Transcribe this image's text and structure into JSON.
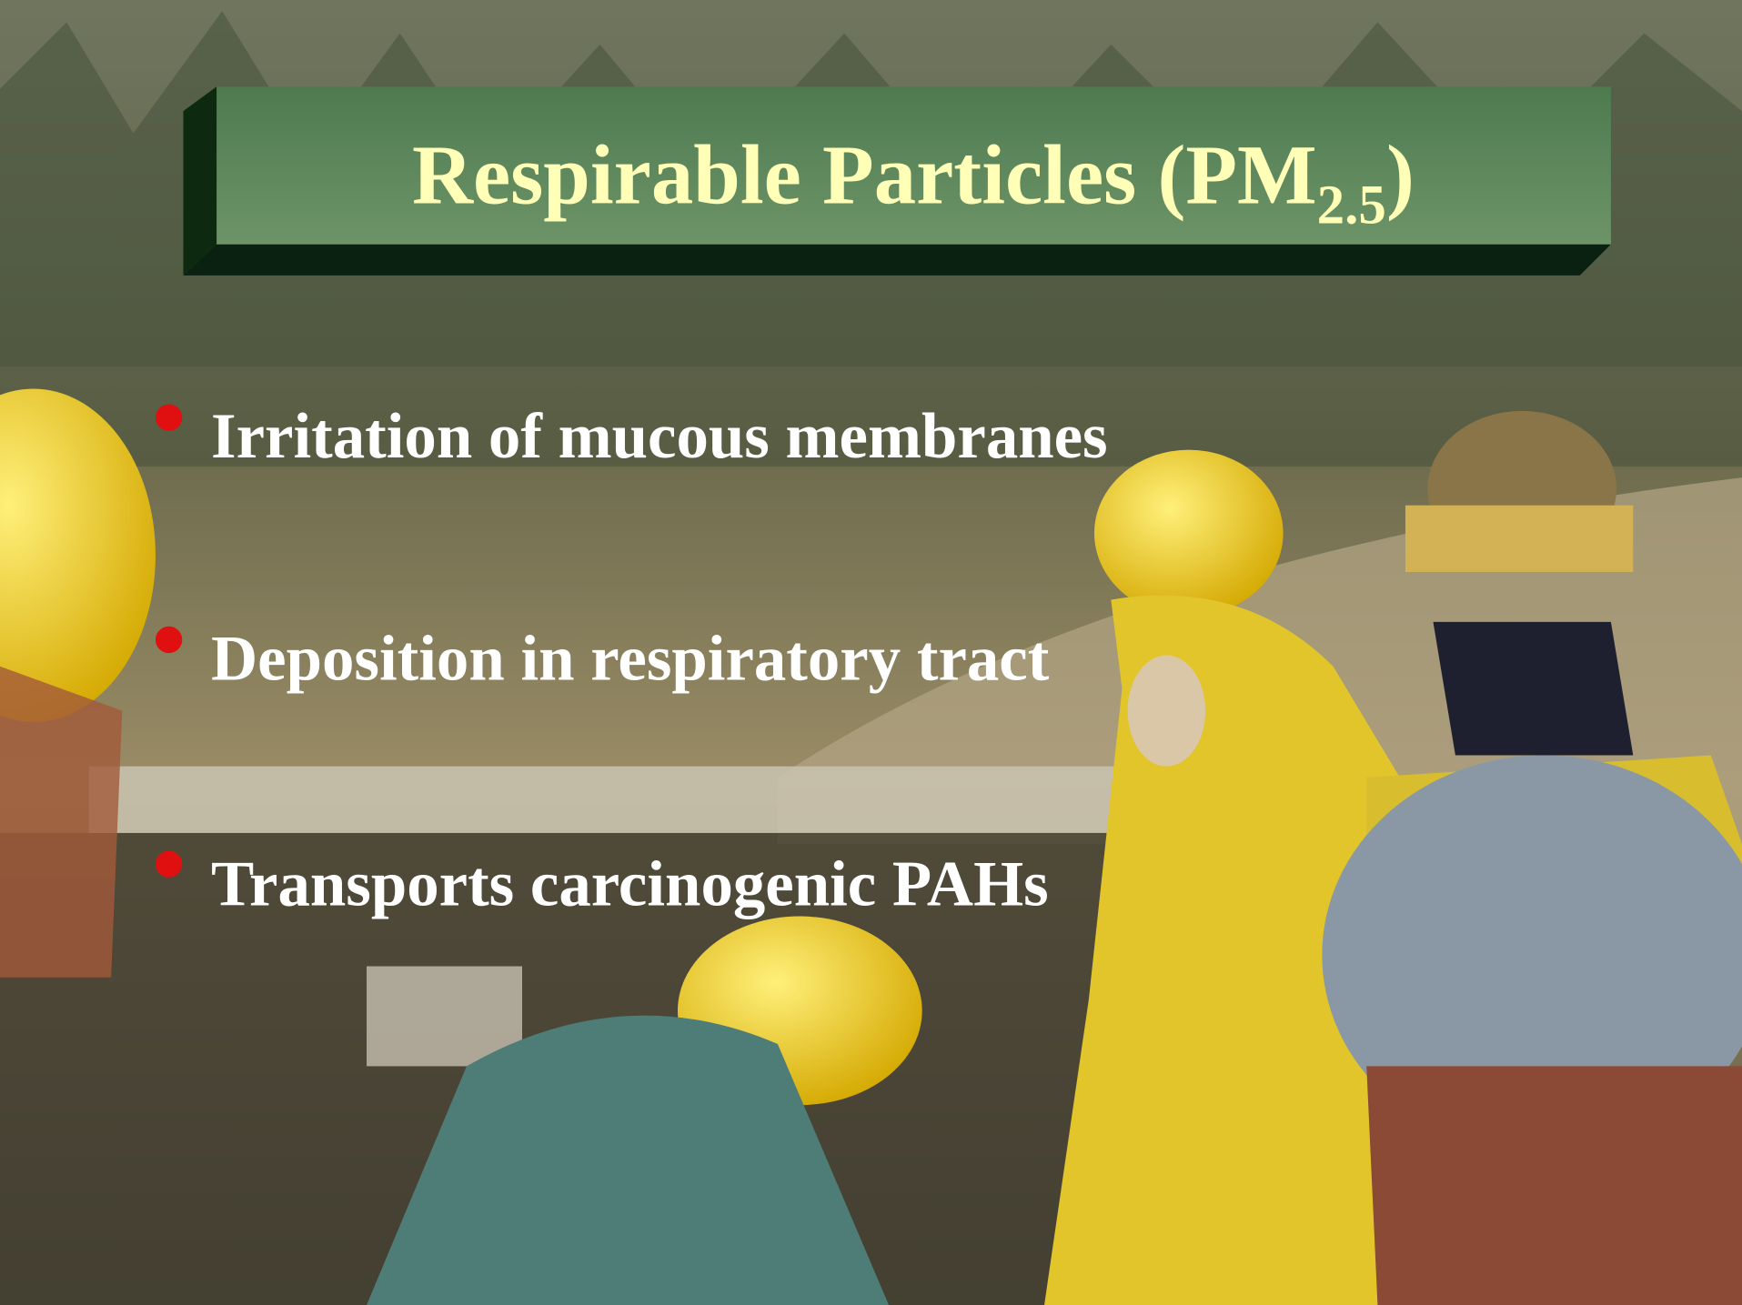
{
  "slide": {
    "title": {
      "text": "Respirable Particles (PM",
      "subscript": "2.5",
      "suffix": ")"
    },
    "bullets": [
      "Irritation of mucous membranes",
      "Deposition in respiratory tract",
      "Transports carcinogenic PAHs"
    ]
  }
}
